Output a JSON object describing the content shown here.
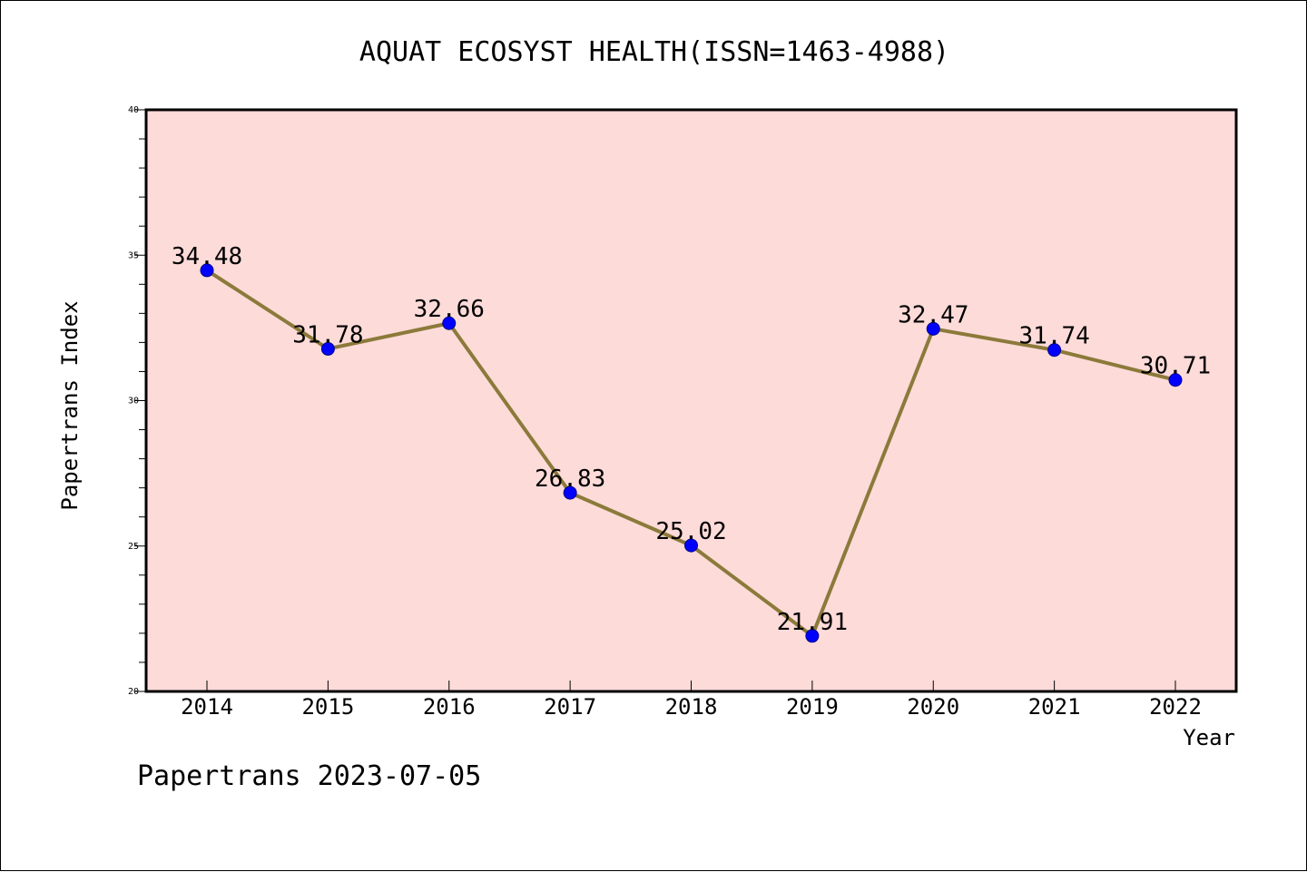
{
  "chart_data": {
    "type": "line",
    "title": "AQUAT ECOSYST HEALTH(ISSN=1463-4988)",
    "xlabel": "Year",
    "ylabel": "Papertrans Index",
    "categories": [
      "2014",
      "2015",
      "2016",
      "2017",
      "2018",
      "2019",
      "2020",
      "2021",
      "2022"
    ],
    "series": [
      {
        "values": [
          34.48,
          31.78,
          32.66,
          26.83,
          25.02,
          21.91,
          32.47,
          31.74,
          30.71
        ],
        "labels": [
          "34.48",
          "31.78",
          "32.66",
          "26.83",
          "25.02",
          "21.91",
          "32.47",
          "31.74",
          "30.71"
        ]
      }
    ],
    "ylim": [
      20,
      40
    ],
    "yticks": [
      "20",
      "25",
      "30",
      "35",
      "40"
    ],
    "grid": false,
    "legend": "none",
    "colors": {
      "plot_background": "#fddbd9",
      "line": "#8b7a3a",
      "marker": "#0000ff"
    }
  },
  "footer": "Papertrans 2023-07-05"
}
